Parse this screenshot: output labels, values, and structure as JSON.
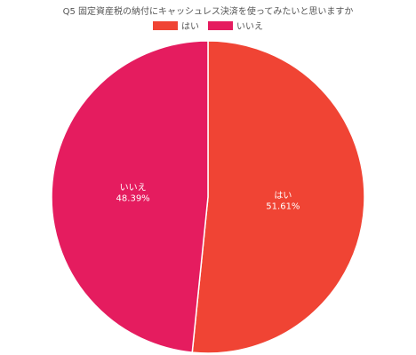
{
  "chart_data": {
    "type": "pie",
    "title": "Q5 固定資産税の納付にキャッシュレス決済を使ってみたいと思いますか",
    "legend_position": "top",
    "series": [
      {
        "name": "はい",
        "value": 51.61,
        "label": "51.61%",
        "color": "#f04434"
      },
      {
        "name": "いいえ",
        "value": 48.39,
        "label": "48.39%",
        "color": "#e51c5f"
      }
    ]
  }
}
